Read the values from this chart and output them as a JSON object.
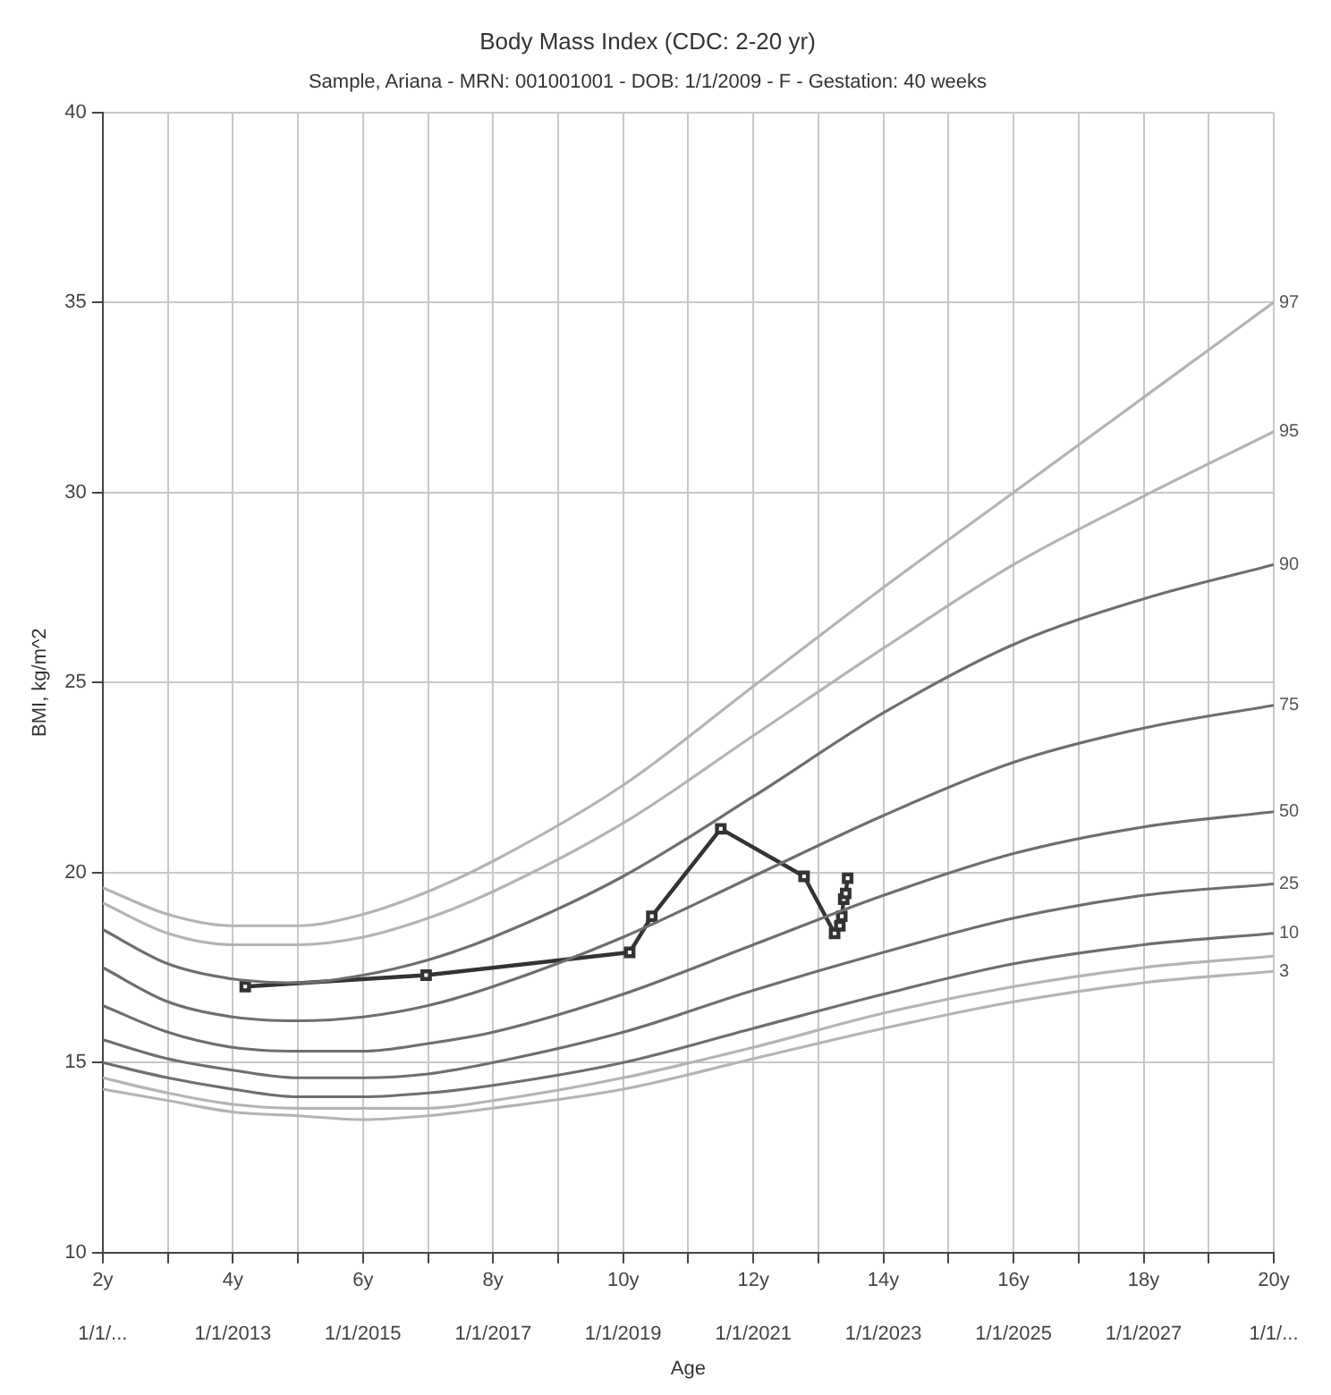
{
  "chart_data": {
    "type": "line",
    "title": "Body Mass Index (CDC: 2-20 yr)",
    "subtitle": "Sample, Ariana - MRN: 001001001 - DOB: 1/1/2009 - F - Gestation: 40 weeks",
    "xlabel": "Age",
    "ylabel": "BMI, kg/m^2",
    "xlim": [
      2,
      20
    ],
    "xticks": [
      {
        "value": 2,
        "label": "2y"
      },
      {
        "value": 3,
        "label": null
      },
      {
        "value": 4,
        "label": "4y"
      },
      {
        "value": 5,
        "label": null
      },
      {
        "value": 6,
        "label": "6y"
      },
      {
        "value": 7,
        "label": null
      },
      {
        "value": 8,
        "label": "8y"
      },
      {
        "value": 9,
        "label": null
      },
      {
        "value": 10,
        "label": "10y"
      },
      {
        "value": 11,
        "label": null
      },
      {
        "value": 12,
        "label": "12y"
      },
      {
        "value": 13,
        "label": null
      },
      {
        "value": 14,
        "label": "14y"
      },
      {
        "value": 15,
        "label": null
      },
      {
        "value": 16,
        "label": "16y"
      },
      {
        "value": 17,
        "label": null
      },
      {
        "value": 18,
        "label": "18y"
      },
      {
        "value": 19,
        "label": null
      },
      {
        "value": 20,
        "label": "20y"
      }
    ],
    "x2lim": [
      "2011-01-01",
      "2029-01-01"
    ],
    "x2ticks": [
      {
        "value": "2011-01-01",
        "label": "1/1/..."
      },
      {
        "value": "2013-01-01",
        "label": "1/1/2013"
      },
      {
        "value": "2015-01-01",
        "label": "1/1/2015"
      },
      {
        "value": "2017-01-01",
        "label": "1/1/2017"
      },
      {
        "value": "2019-01-01",
        "label": "1/1/2019"
      },
      {
        "value": "2021-01-01",
        "label": "1/1/2021"
      },
      {
        "value": "2023-01-01",
        "label": "1/1/2023"
      },
      {
        "value": "2025-01-01",
        "label": "1/1/2025"
      },
      {
        "value": "2027-01-01",
        "label": "1/1/2027"
      },
      {
        "value": "2029-01-01",
        "label": "1/1/..."
      }
    ],
    "ylim": [
      10,
      40
    ],
    "yticks": [
      10,
      15,
      20,
      25,
      30,
      35,
      40
    ],
    "grid": true,
    "marker": "none",
    "line_style": "solid",
    "x": [
      2,
      3,
      4,
      5,
      6,
      7,
      8,
      10,
      12,
      14,
      16,
      18,
      20
    ],
    "series": [
      {
        "name": "97",
        "color": "#b4b4b4",
        "values": [
          19.6,
          18.9,
          18.6,
          18.6,
          18.9,
          19.5,
          20.3,
          22.3,
          24.9,
          27.5,
          30.0,
          32.5,
          35.0
        ]
      },
      {
        "name": "95",
        "color": "#b4b4b4",
        "values": [
          19.2,
          18.4,
          18.1,
          18.1,
          18.3,
          18.8,
          19.5,
          21.3,
          23.6,
          25.9,
          28.1,
          29.9,
          31.6
        ]
      },
      {
        "name": "90",
        "color": "#6e6e6e",
        "values": [
          18.5,
          17.6,
          17.2,
          17.1,
          17.3,
          17.7,
          18.3,
          19.9,
          22.0,
          24.2,
          26.0,
          27.2,
          28.1
        ]
      },
      {
        "name": "75",
        "color": "#6e6e6e",
        "values": [
          17.5,
          16.6,
          16.2,
          16.1,
          16.2,
          16.5,
          17.0,
          18.3,
          19.9,
          21.5,
          22.9,
          23.8,
          24.4
        ]
      },
      {
        "name": "50",
        "color": "#6e6e6e",
        "values": [
          16.5,
          15.8,
          15.4,
          15.3,
          15.3,
          15.5,
          15.8,
          16.8,
          18.1,
          19.4,
          20.5,
          21.2,
          21.6
        ]
      },
      {
        "name": "25",
        "color": "#6e6e6e",
        "values": [
          15.6,
          15.1,
          14.8,
          14.6,
          14.6,
          14.7,
          15.0,
          15.8,
          16.9,
          17.9,
          18.8,
          19.4,
          19.7
        ]
      },
      {
        "name": "10",
        "color": "#6e6e6e",
        "values": [
          15.0,
          14.6,
          14.3,
          14.1,
          14.1,
          14.2,
          14.4,
          15.0,
          15.9,
          16.8,
          17.6,
          18.1,
          18.4
        ]
      },
      {
        "color": "#b4b4b4",
        "values": [
          14.6,
          14.2,
          13.9,
          13.8,
          13.8,
          13.8,
          14.0,
          14.6,
          15.4,
          16.3,
          17.0,
          17.5,
          17.8
        ]
      },
      {
        "name": "3",
        "color": "#b4b4b4",
        "values": [
          14.3,
          14.0,
          13.7,
          13.6,
          13.5,
          13.6,
          13.8,
          14.3,
          15.1,
          15.9,
          16.6,
          17.1,
          17.4
        ]
      },
      {
        "color": "#333333",
        "marker": "square",
        "x": [
          4.19,
          6.97,
          10.1,
          10.44,
          11.5,
          12.78,
          13.25,
          13.33,
          13.36,
          13.39,
          13.42,
          13.45
        ],
        "values": [
          17.0,
          17.3,
          17.9,
          18.85,
          21.15,
          19.9,
          18.4,
          18.6,
          18.85,
          19.3,
          19.45,
          19.85
        ]
      }
    ]
  }
}
